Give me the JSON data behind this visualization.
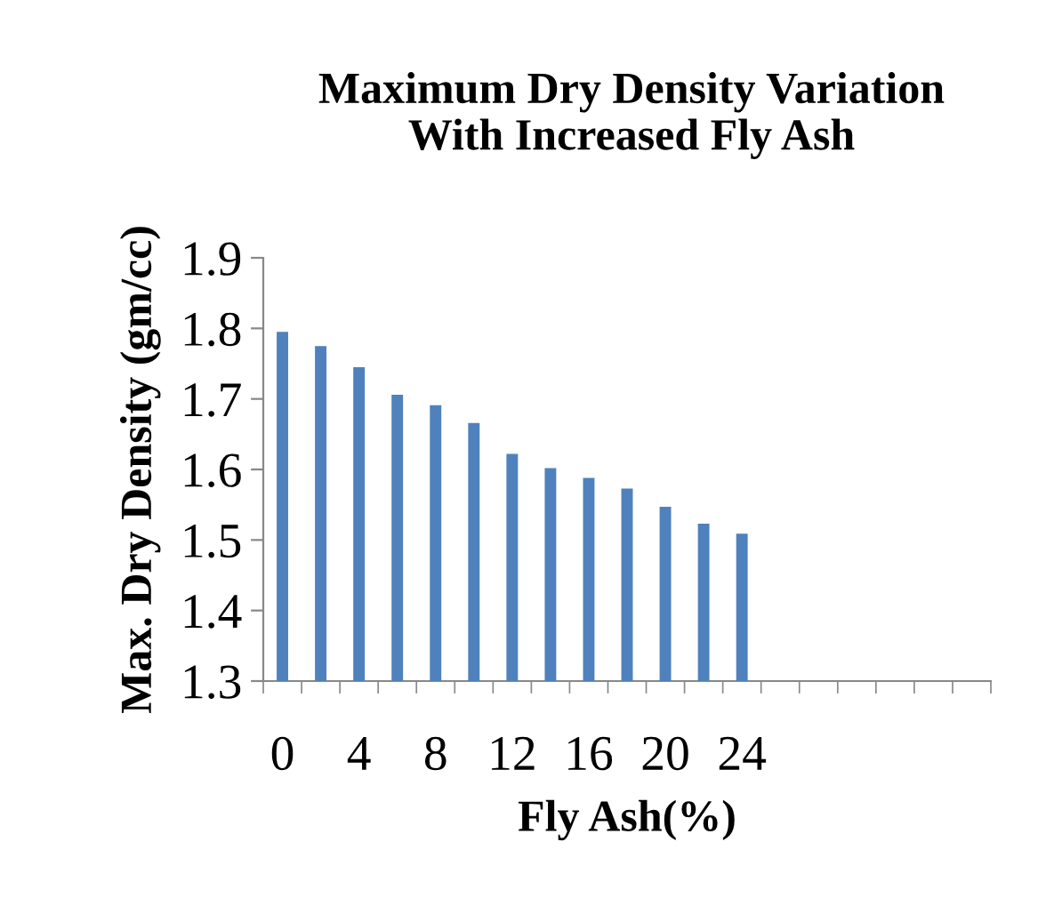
{
  "chart_data": {
    "type": "bar",
    "title": "Maximum Dry Density Variation\nWith Increased Fly Ash",
    "xlabel": "Fly Ash(%)",
    "ylabel": "Max. Dry Density (gm/cc)",
    "categories": [
      "0",
      null,
      "4",
      null,
      "8",
      null,
      "12",
      null,
      "16",
      null,
      "20",
      null,
      "24",
      null,
      null,
      null,
      null,
      null,
      null
    ],
    "values": [
      1.795,
      1.775,
      1.745,
      1.706,
      1.691,
      1.666,
      1.622,
      1.602,
      1.588,
      1.573,
      1.547,
      1.523,
      1.509,
      null,
      null,
      null,
      null,
      null,
      null
    ],
    "color": "#4f81bd",
    "ylim": [
      1.3,
      1.9
    ],
    "yticks": [
      1.3,
      1.4,
      1.5,
      1.6,
      1.7,
      1.8,
      1.9
    ],
    "grid": false,
    "legend": false
  }
}
